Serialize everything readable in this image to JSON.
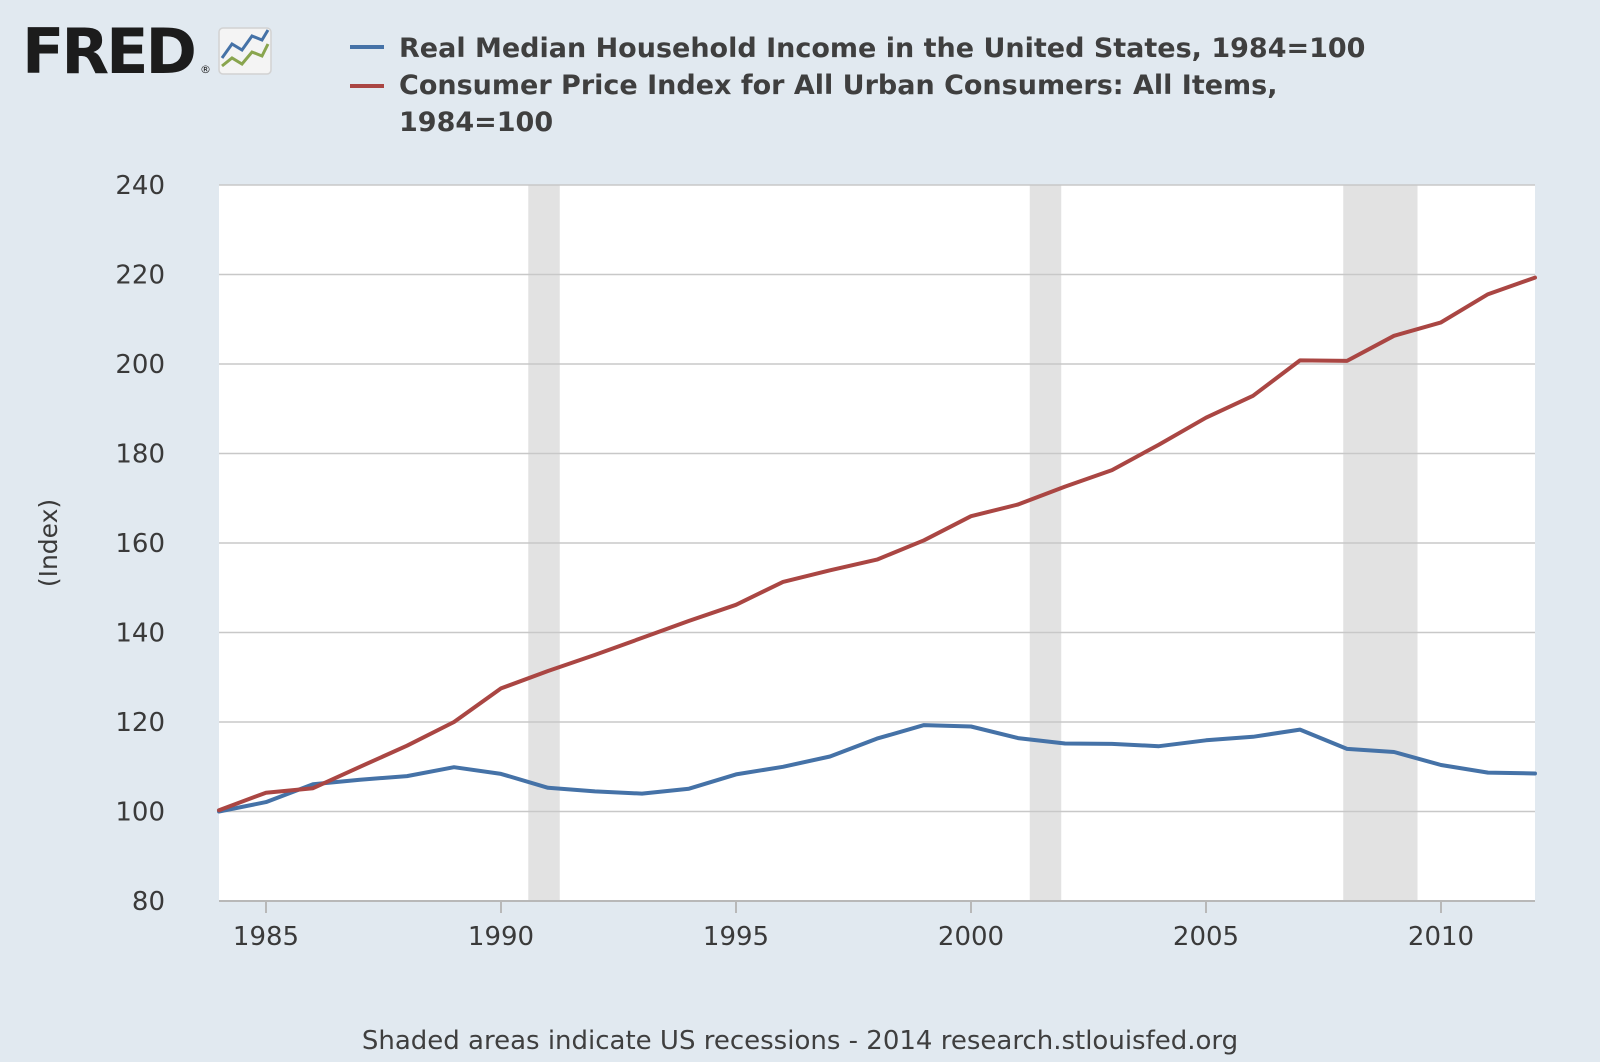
{
  "logo": {
    "text": "FRED",
    "registered": "®"
  },
  "footer": {
    "text": "Shaded areas indicate US recessions - 2014 research.stlouisfed.org"
  },
  "colors": {
    "background": "#e1e9f0",
    "plot_background": "#ffffff",
    "recession": "#e2e2e2",
    "grid": "#c8c8c8"
  },
  "chart_data": {
    "type": "line",
    "ylabel": "(Index)",
    "xlabel": "",
    "ylim": [
      80,
      240
    ],
    "xlim": [
      1984,
      2012
    ],
    "y_ticks": [
      80,
      100,
      120,
      140,
      160,
      180,
      200,
      220,
      240
    ],
    "x_ticks": [
      1985,
      1990,
      1995,
      2000,
      2005,
      2010
    ],
    "grid": true,
    "legend_position": "top",
    "recessions": [
      [
        1990.58,
        1991.25
      ],
      [
        2001.25,
        2001.92
      ],
      [
        2007.92,
        2009.5
      ]
    ],
    "series": [
      {
        "name": "Real Median Household Income in the United States, 1984=100",
        "color": "#4572a7",
        "x": [
          1984,
          1985,
          1986,
          1987,
          1988,
          1989,
          1990,
          1991,
          1992,
          1993,
          1994,
          1995,
          1996,
          1997,
          1998,
          1999,
          2000,
          2001,
          2002,
          2003,
          2004,
          2005,
          2006,
          2007,
          2008,
          2009,
          2010,
          2011,
          2012
        ],
        "values": [
          100.0,
          102.1,
          106.1,
          107.1,
          107.9,
          109.9,
          108.4,
          105.3,
          104.5,
          104.0,
          105.1,
          108.3,
          110.0,
          112.3,
          116.3,
          119.3,
          119.0,
          116.4,
          115.2,
          115.1,
          114.6,
          115.9,
          116.7,
          118.3,
          114.0,
          113.3,
          110.4,
          108.7,
          108.5
        ],
        "legend_lines": [
          "Real Median Household Income in the United States, 1984=100"
        ]
      },
      {
        "name": "Consumer Price Index for All Urban Consumers: All Items, 1984=100",
        "color": "#aa4643",
        "x": [
          1984,
          1985,
          1986,
          1987,
          1988,
          1989,
          1990,
          1991,
          1992,
          1993,
          1994,
          1995,
          1996,
          1997,
          1998,
          1999,
          2000,
          2001,
          2002,
          2003,
          2004,
          2005,
          2006,
          2007,
          2008,
          2009,
          2010,
          2011,
          2012
        ],
        "values": [
          100.3,
          104.2,
          105.2,
          110.0,
          114.7,
          120.0,
          127.5,
          131.4,
          135.0,
          138.8,
          142.6,
          146.2,
          151.3,
          153.9,
          156.3,
          160.6,
          166.0,
          168.6,
          172.6,
          176.3,
          182.0,
          188.0,
          192.9,
          200.8,
          200.7,
          206.3,
          209.3,
          215.6,
          219.3
        ],
        "legend_lines": [
          "Consumer Price Index for All Urban Consumers: All Items,",
          "1984=100"
        ]
      }
    ]
  }
}
